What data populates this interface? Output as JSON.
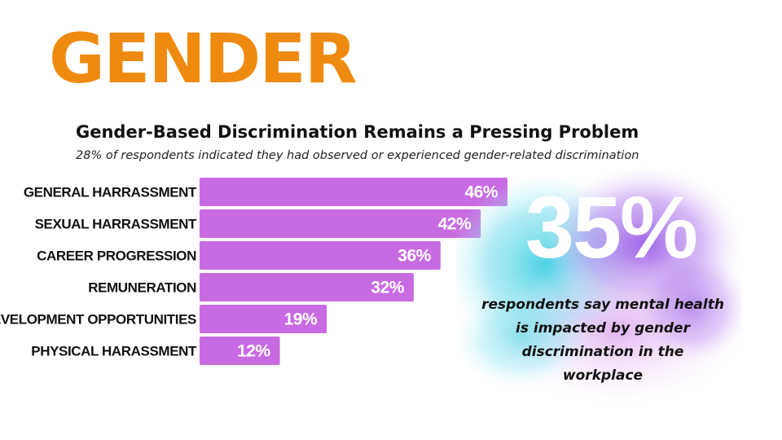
{
  "headline": "GENDER",
  "colors": {
    "headline": "#ef8a10",
    "bar": "#c86be3",
    "bar_text": "#ffffff",
    "splash_cyan": "#55d6e6",
    "splash_purple": "#a36ee8"
  },
  "callout": {
    "value": "35%",
    "caption": "respondents say mental health is impacted by gender discrimination in the workplace"
  },
  "chart_data": {
    "type": "bar",
    "orientation": "horizontal",
    "title": "Gender-Based Discrimination Remains a Pressing Problem",
    "subtitle": "28% of respondents indicated they had observed or experienced gender-related discrimination",
    "categories": [
      "GENERAL HARRASSMENT",
      "SEXUAL HARRASSMENT",
      "CAREER PROGRESSION",
      "REMUNERATION",
      "DEVELOPMENT OPPORTUNITIES",
      "PHYSICAL HARASSMENT"
    ],
    "values": [
      46,
      42,
      36,
      32,
      19,
      12
    ],
    "value_labels": [
      "46%",
      "42%",
      "36%",
      "32%",
      "19%",
      "12%"
    ],
    "xlim": [
      0,
      46
    ],
    "grid": false,
    "legend": "none"
  }
}
